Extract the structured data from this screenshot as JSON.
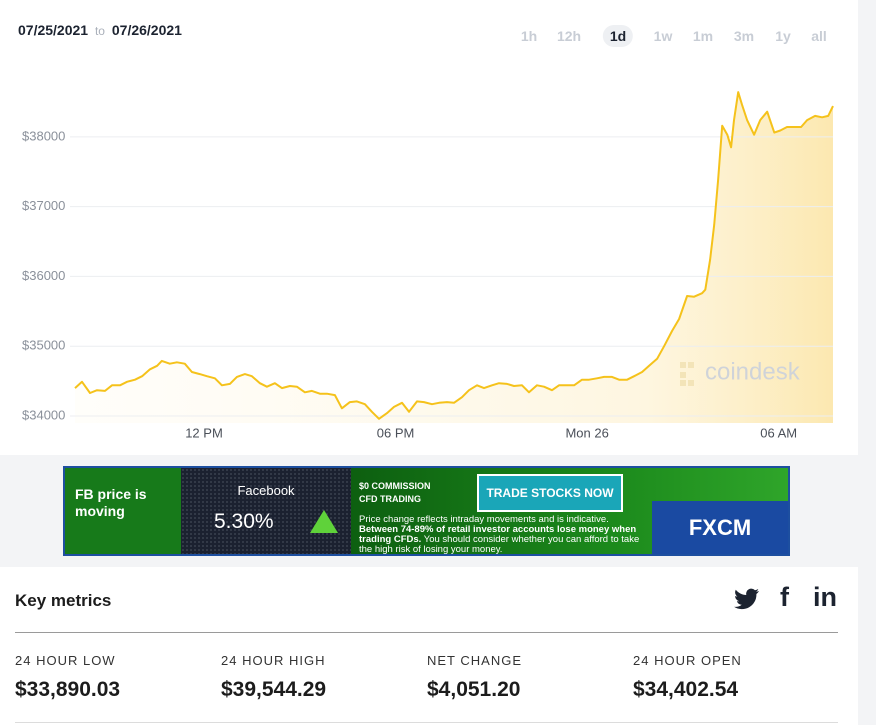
{
  "header": {
    "from": "07/25/2021",
    "to_word": "to",
    "to": "07/26/2021"
  },
  "timeframes": {
    "options": [
      "1h",
      "12h",
      "1d",
      "1w",
      "1m",
      "3m",
      "1y",
      "all"
    ],
    "active_index": 2
  },
  "chart_data": {
    "type": "line",
    "color": "#f5c21b",
    "grid": true,
    "x": [
      7.96,
      8.18,
      8.43,
      8.65,
      8.9,
      9.12,
      9.37,
      9.59,
      9.84,
      10.06,
      10.31,
      10.53,
      10.68,
      10.93,
      11.15,
      11.4,
      11.62,
      11.87,
      12.09,
      12.34,
      12.56,
      12.81,
      13.03,
      13.28,
      13.5,
      13.75,
      13.97,
      14.22,
      14.44,
      14.69,
      14.91,
      15.16,
      15.38,
      15.63,
      15.85,
      16.1,
      16.32,
      16.57,
      16.79,
      17.04,
      17.26,
      17.48,
      17.73,
      17.95,
      18.2,
      18.42,
      18.67,
      18.89,
      19.14,
      19.36,
      19.61,
      19.83,
      20.08,
      20.3,
      20.55,
      20.77,
      21.02,
      21.24,
      21.49,
      21.71,
      21.96,
      22.18,
      22.43,
      22.65,
      22.9,
      23.12,
      23.37,
      23.59,
      23.84,
      24.06,
      24.31,
      24.53,
      24.78,
      25.0,
      25.25,
      25.47,
      25.72,
      25.94,
      26.19,
      26.41,
      26.66,
      26.88,
      27.13,
      27.35,
      27.6,
      27.7,
      27.85,
      27.98,
      28.1,
      28.23,
      28.39,
      28.51,
      28.6,
      28.73,
      28.85,
      29.01,
      29.23,
      29.42,
      29.64,
      29.86,
      30.05,
      30.26,
      30.48,
      30.7,
      30.89,
      31.14,
      31.36,
      31.55,
      31.7
    ],
    "values": [
      34400,
      34490,
      34330,
      34370,
      34360,
      34440,
      34440,
      34490,
      34520,
      34570,
      34670,
      34720,
      34790,
      34750,
      34770,
      34750,
      34630,
      34600,
      34570,
      34540,
      34440,
      34460,
      34560,
      34600,
      34570,
      34470,
      34420,
      34470,
      34400,
      34430,
      34420,
      34340,
      34360,
      34320,
      34320,
      34300,
      34110,
      34200,
      34210,
      34170,
      34060,
      33960,
      34040,
      34130,
      34190,
      34060,
      34210,
      34200,
      34170,
      34190,
      34200,
      34190,
      34270,
      34370,
      34440,
      34400,
      34440,
      34470,
      34460,
      34430,
      34440,
      34340,
      34440,
      34420,
      34370,
      34440,
      34440,
      34440,
      34520,
      34520,
      34540,
      34560,
      34560,
      34520,
      34520,
      34570,
      34630,
      34720,
      34820,
      35000,
      35220,
      35390,
      35720,
      35710,
      35760,
      35810,
      36240,
      36740,
      37380,
      38160,
      38030,
      37850,
      38240,
      38640,
      38460,
      38240,
      38030,
      38240,
      38360,
      38060,
      38090,
      38140,
      38140,
      38140,
      38240,
      38300,
      38280,
      38300,
      38440
    ],
    "xlim": [
      7.96,
      31.7
    ],
    "xticks": [
      {
        "value": 12,
        "label": "12 PM"
      },
      {
        "value": 18,
        "label": "06 PM"
      },
      {
        "value": 24,
        "label": "Mon 26"
      },
      {
        "value": 30,
        "label": "06 AM"
      }
    ],
    "ylim": [
      33900,
      38900
    ],
    "yticks": [
      {
        "value": 34000,
        "label": "$34000"
      },
      {
        "value": 35000,
        "label": "$35000"
      },
      {
        "value": 36000,
        "label": "$36000"
      },
      {
        "value": 37000,
        "label": "$37000"
      },
      {
        "value": 38000,
        "label": "$38000"
      }
    ]
  },
  "watermark": "coindesk",
  "ad": {
    "headline": "FB price is moving",
    "ticker": "Facebook",
    "change": "5.30%",
    "offer_1": "$0 COMMISSION",
    "offer_2": "CFD TRADING",
    "button": "TRADE STOCKS NOW",
    "disclaimer_1": "Price change reflects intraday movements and is indicative.",
    "disclaimer_2": "Between 74-89% of retail investor accounts lose money when trading CFDs.",
    "disclaimer_3": "You should consider whether you can afford to take the high risk of losing your money.",
    "brand": "FXCM"
  },
  "key_metrics": {
    "title": "Key metrics",
    "social": [
      "f",
      "in"
    ],
    "metrics": [
      {
        "label": "24 HOUR LOW",
        "value": "$33,890.03"
      },
      {
        "label": "24 HOUR HIGH",
        "value": "$39,544.29"
      },
      {
        "label": "NET CHANGE",
        "value": "$4,051.20"
      },
      {
        "label": "24 HOUR OPEN",
        "value": "$34,402.54"
      }
    ]
  }
}
